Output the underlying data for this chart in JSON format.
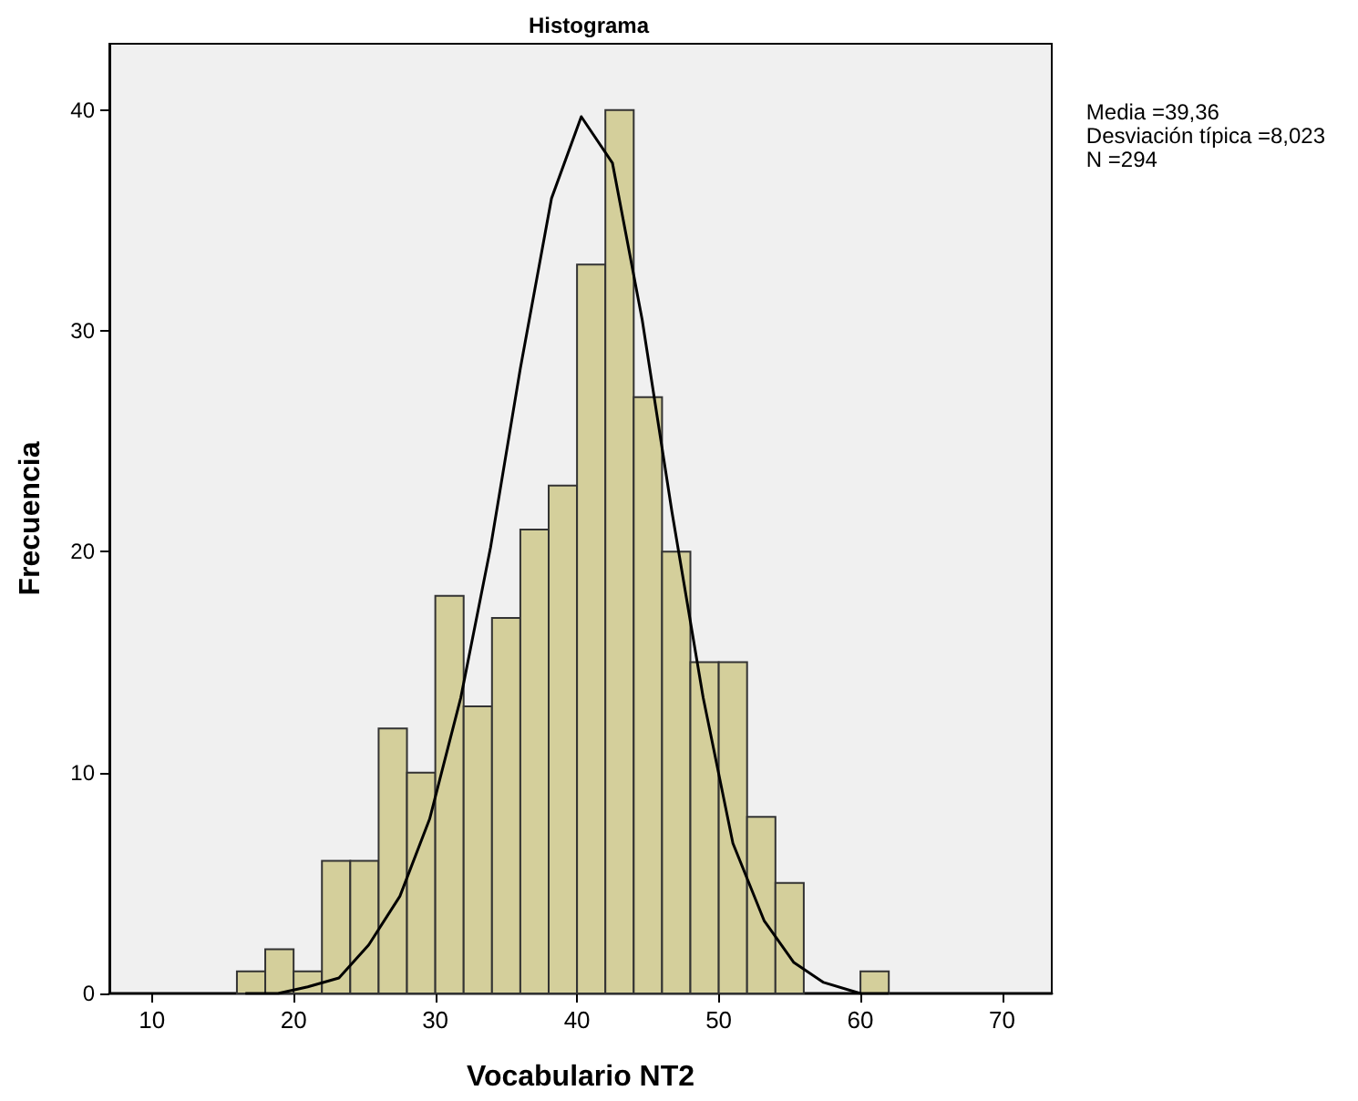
{
  "chart_data": {
    "type": "histogram",
    "title": "Histograma",
    "xlabel": "Vocabulario NT2",
    "ylabel": "Frecuencia",
    "bins": [
      16,
      18,
      20,
      22,
      24,
      26,
      28,
      30,
      32,
      34,
      36,
      38,
      40,
      42,
      44,
      46,
      48,
      50,
      52,
      54,
      56,
      58,
      60,
      62
    ],
    "values": [
      1,
      2,
      1,
      6,
      6,
      12,
      10,
      18,
      13,
      17,
      21,
      23,
      33,
      40,
      27,
      20,
      15,
      15,
      8,
      5,
      0,
      0,
      1
    ],
    "color": "#d4cf9b",
    "series": [
      {
        "type": "line",
        "color": "#000000",
        "marker": "none",
        "x": [
          16.6,
          18.9,
          21,
          23.2,
          25.3,
          27.5,
          29.6,
          31.8,
          33.9,
          36.0,
          38.2,
          40.3,
          42.5,
          44.6,
          46.7,
          48.9,
          51.0,
          53.2,
          55.3,
          57.4,
          60,
          62
        ],
        "values": [
          0,
          0,
          0.3,
          0.7,
          2.2,
          4.4,
          7.9,
          13.4,
          20.2,
          28.3,
          36.0,
          39.7,
          37.6,
          30.5,
          21.8,
          13.4,
          6.8,
          3.3,
          1.4,
          0.5,
          0,
          0
        ]
      }
    ],
    "annotations": [
      "Media =39,36\nDesviación típica =8,023\nN =294"
    ],
    "xlim": [
      7,
      73.5
    ],
    "ylim": [
      0,
      43
    ],
    "xticks": [
      10,
      20,
      30,
      40,
      50,
      60,
      70
    ],
    "yticks": [
      0,
      10,
      20,
      30,
      40
    ],
    "grid": false
  }
}
